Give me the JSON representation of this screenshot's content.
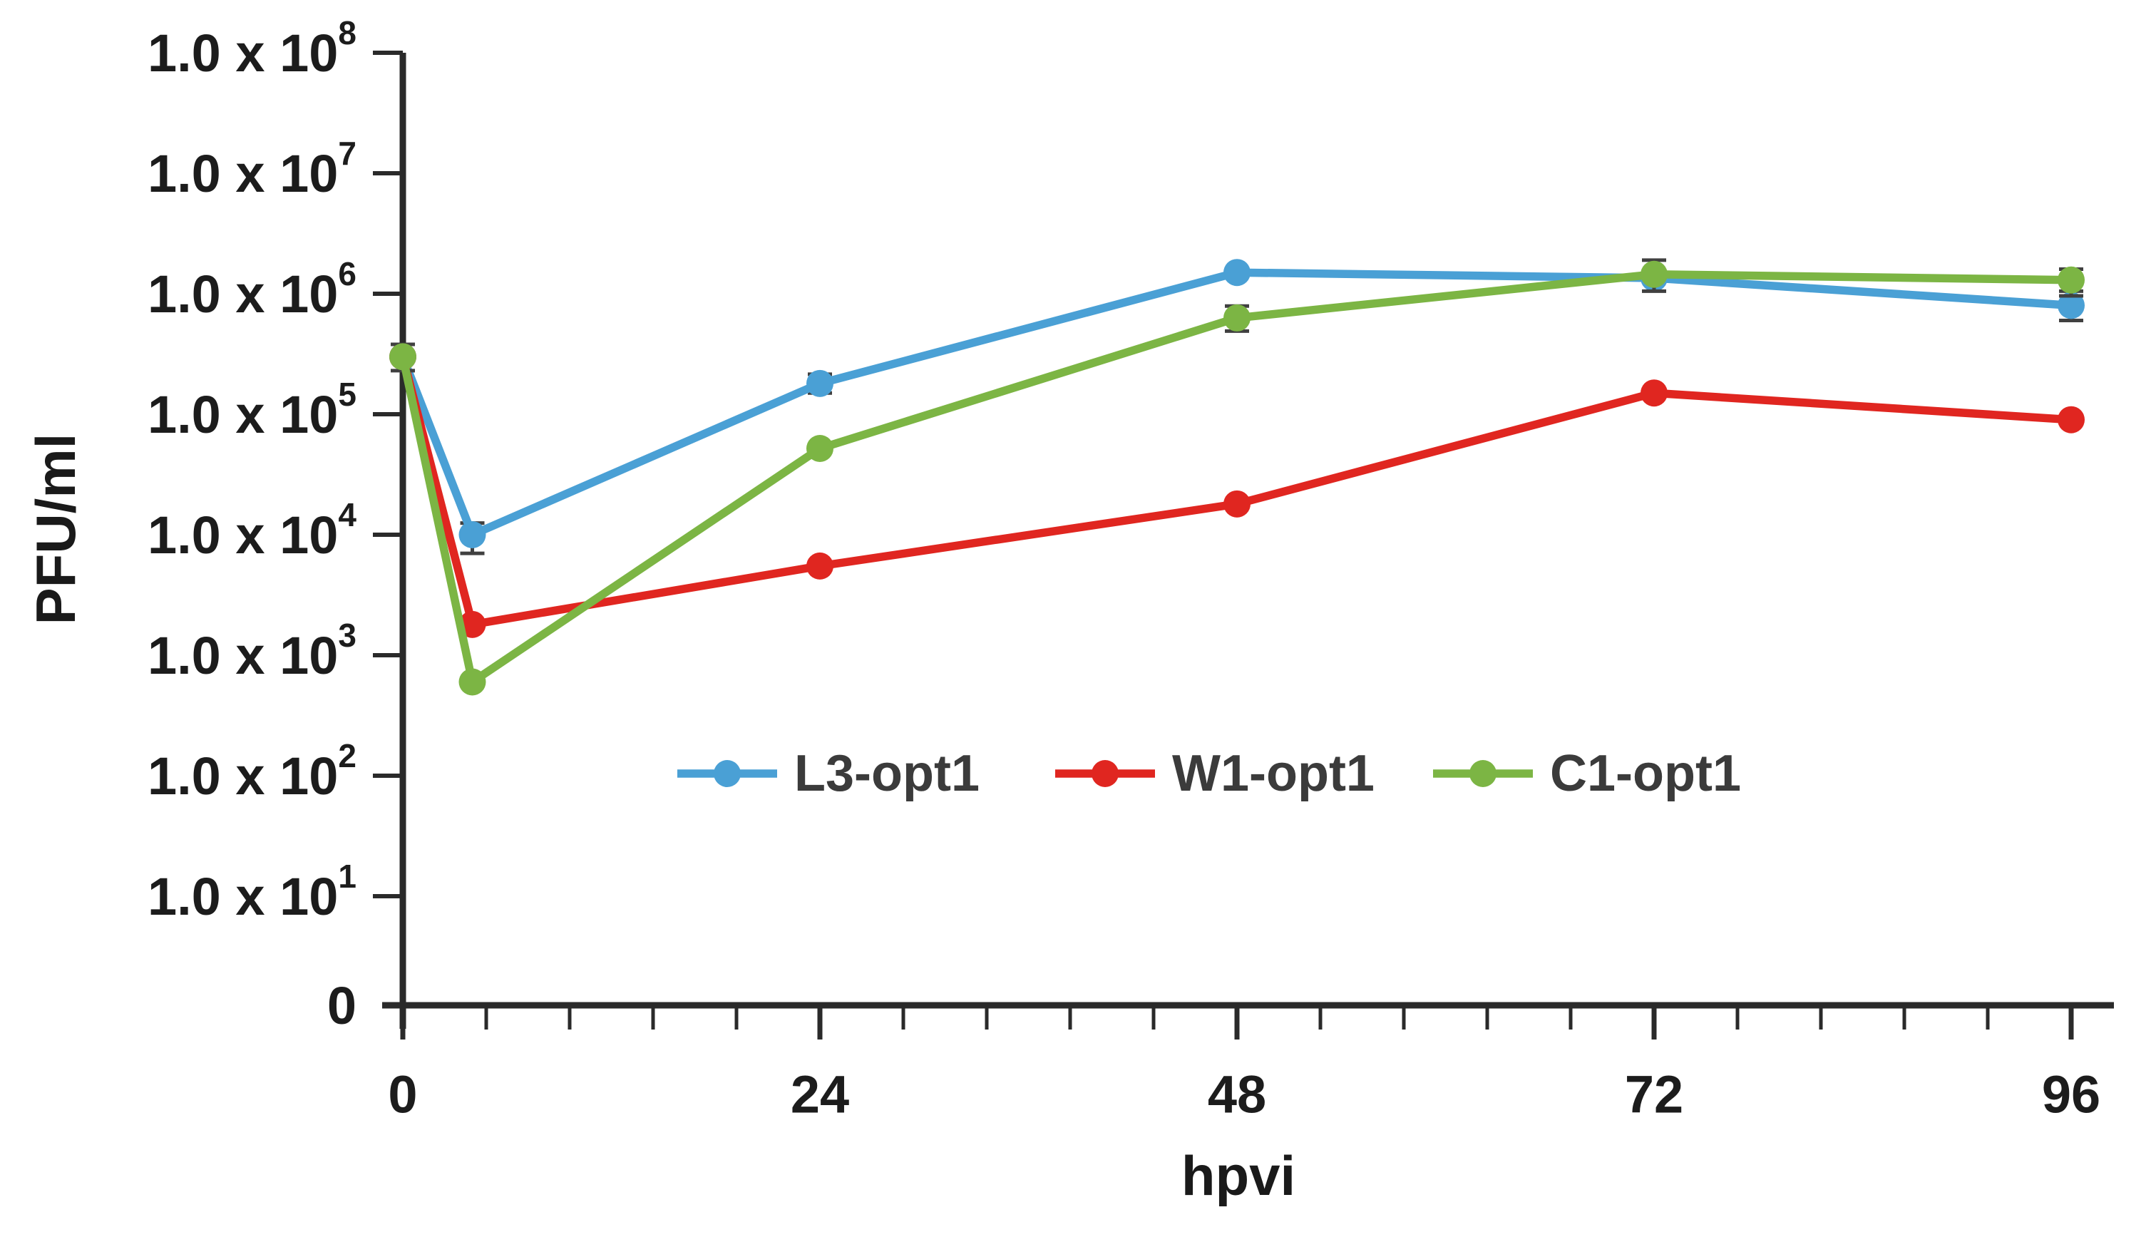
{
  "background": "#ffffff",
  "chart_data": {
    "type": "line",
    "title": "",
    "xlabel": "hpvi",
    "ylabel": "PFU/ml",
    "x_scale": "linear",
    "y_scale": "log",
    "xlim": [
      0,
      98
    ],
    "ylim_log": [
      0,
      100000000
    ],
    "grid": false,
    "legend_position": "inside-bottom-center",
    "x_ticks": [
      0,
      24,
      48,
      72,
      96
    ],
    "x_minor_tick_unit": 4.8,
    "y_ticks": [
      {
        "m": "1.0 x 10",
        "e": "8",
        "v": 100000000
      },
      {
        "m": "1.0 x 10",
        "e": "7",
        "v": 10000000
      },
      {
        "m": "1.0 x 10",
        "e": "6",
        "v": 1000000
      },
      {
        "m": "1.0 x 10",
        "e": "5",
        "v": 100000
      },
      {
        "m": "1.0 x 10",
        "e": "4",
        "v": 10000
      },
      {
        "m": "1.0 x 10",
        "e": "3",
        "v": 1000
      },
      {
        "m": "1.0 x 10",
        "e": "2",
        "v": 100
      },
      {
        "m": "1.0 x 10",
        "e": "1",
        "v": 10
      },
      {
        "m": "0",
        "e": "",
        "v": 0
      }
    ],
    "x": [
      0,
      4,
      24,
      48,
      72,
      96
    ],
    "series": [
      {
        "name": "L3-opt1",
        "color": "#4AA0D5",
        "values": [
          300000,
          10000,
          180000,
          1500000,
          1350000,
          800000
        ],
        "errors": [
          null,
          [
            7000,
            12500
          ],
          [
            150000,
            215000
          ],
          null,
          null,
          [
            600000,
            1050000
          ]
        ]
      },
      {
        "name": "W1-opt1",
        "color": "#E02620",
        "values": [
          300000,
          1800,
          5500,
          18000,
          150000,
          90000
        ],
        "errors": [
          null,
          null,
          null,
          null,
          null,
          null
        ]
      },
      {
        "name": "C1-opt1",
        "color": "#7CB544",
        "values": [
          300000,
          600,
          52000,
          630000,
          1450000,
          1300000
        ],
        "errors": [
          [
            230000,
            380000
          ],
          null,
          null,
          [
            490000,
            790000
          ],
          [
            1050000,
            1900000
          ],
          [
            960000,
            1600000
          ]
        ]
      }
    ],
    "error_bar_color": "#404040",
    "axis_color": "#2a2a2a"
  }
}
